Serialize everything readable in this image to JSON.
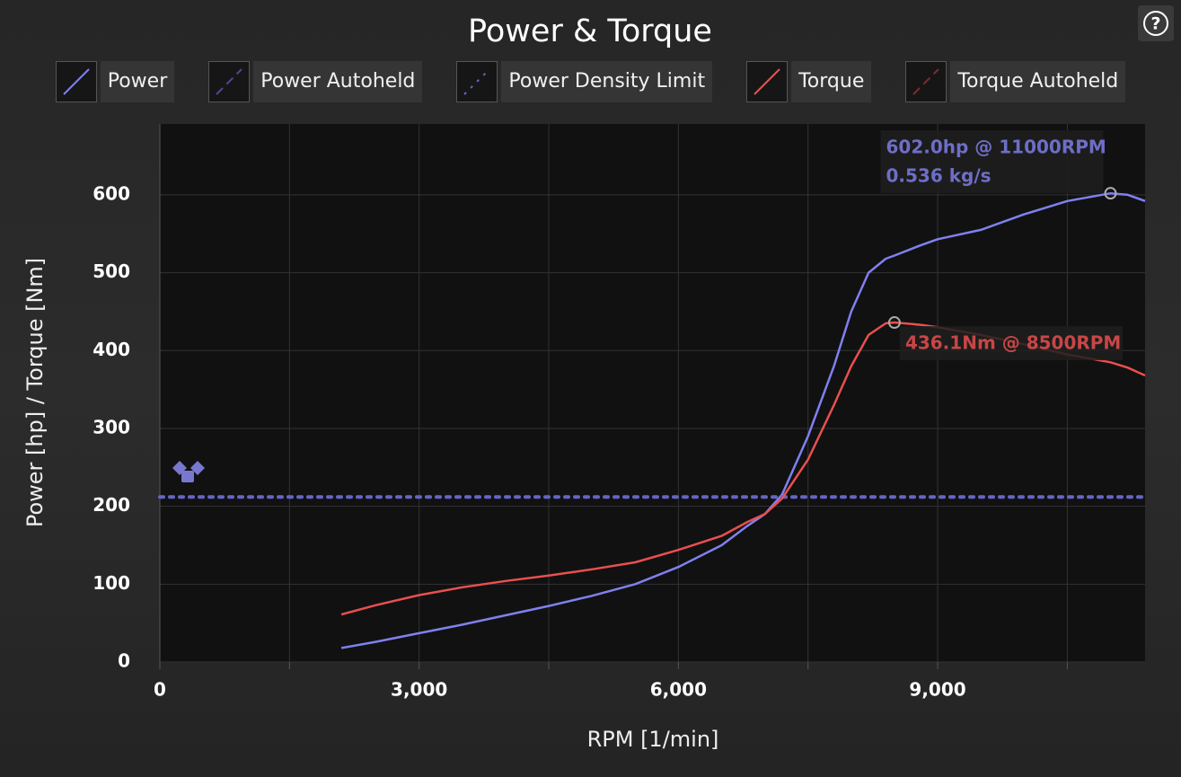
{
  "chart_data": {
    "type": "line",
    "title": "Power & Torque",
    "xlabel": "RPM [1/min]",
    "ylabel": "Power [hp] / Torque [Nm]",
    "x": [
      2100,
      2500,
      3000,
      3500,
      4000,
      4500,
      5000,
      5500,
      6000,
      6500,
      6800,
      7000,
      7200,
      7500,
      7800,
      8000,
      8200,
      8400,
      8500,
      8800,
      9000,
      9500,
      10000,
      10500,
      11000,
      11200,
      11400
    ],
    "series": [
      {
        "name": "Power",
        "color": "#8080f0",
        "dash": "solid",
        "values": [
          18,
          26,
          37,
          48,
          60,
          72,
          85,
          100,
          122,
          150,
          175,
          190,
          215,
          290,
          380,
          450,
          500,
          518,
          522,
          535,
          543,
          555,
          575,
          592,
          602,
          600,
          592
        ]
      },
      {
        "name": "Power Autoheld",
        "color": "#4a4a9a",
        "dash": "dashed",
        "values": null
      },
      {
        "name": "Power Density Limit",
        "color": "#6464c8",
        "dash": "dotted",
        "constant": 212
      },
      {
        "name": "Torque",
        "color": "#e8504f",
        "dash": "solid",
        "values": [
          61,
          73,
          86,
          96,
          104,
          111,
          119,
          128,
          144,
          162,
          180,
          190,
          210,
          260,
          330,
          380,
          420,
          435,
          436,
          433,
          430,
          420,
          408,
          395,
          385,
          378,
          368
        ]
      },
      {
        "name": "Torque Autoheld",
        "color": "#7a2e2e",
        "dash": "dashed",
        "values": null
      }
    ],
    "annotations": [
      {
        "x": 11000,
        "y": 602,
        "color": "#6e6ec8",
        "lines": [
          "602.0hp @ 11000RPM",
          "0.536 kg/s"
        ]
      },
      {
        "x": 8500,
        "y": 436,
        "color": "#c84646",
        "lines": [
          "436.1Nm @ 8500RPM"
        ]
      }
    ],
    "xlim": [
      0,
      11400
    ],
    "ylim": [
      0,
      691
    ],
    "xticks": [
      0,
      {
        "value": 3000,
        "label": "3,000"
      },
      {
        "value": 6000,
        "label": "6,000"
      },
      {
        "value": 9000,
        "label": "9,000"
      }
    ],
    "x_minor_ticks": [
      1500,
      4500,
      7500,
      10500
    ],
    "yticks": [
      0,
      100,
      200,
      300,
      400,
      500,
      600
    ],
    "grid": true
  }
}
